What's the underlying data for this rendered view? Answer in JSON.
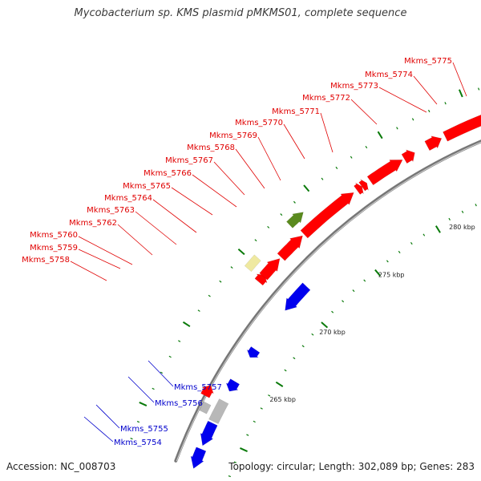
{
  "title": "Mycobacterium sp. KMS plasmid pMKMS01, complete sequence",
  "footer": {
    "accession": "Accession: NC_008703",
    "summary": "Topology: circular; Length: 302,089 bp; Genes: 283"
  },
  "colors": {
    "forward": "#ff0000",
    "reverse": "#0000ee",
    "pseudo": "#efe9a0",
    "rna": "#5a8a1e",
    "other": "#b8b8b8",
    "tick": "#0a7a0a",
    "label_forward": "#e00000",
    "label_reverse": "#0000cc"
  },
  "kbp_labels": [
    "265 kbp",
    "270 kbp",
    "275 kbp",
    "280 kbp",
    "285 kbp"
  ],
  "forward_labels": [
    "Mkms_5758",
    "Mkms_5759",
    "Mkms_5760",
    "Mkms_5762",
    "Mkms_5763",
    "Mkms_5764",
    "Mkms_5765",
    "Mkms_5766",
    "Mkms_5767",
    "Mkms_5768",
    "Mkms_5769",
    "Mkms_5770",
    "Mkms_5771",
    "Mkms_5772",
    "Mkms_5773",
    "Mkms_5774",
    "Mkms_5775"
  ],
  "reverse_labels": [
    "Mkms_5754",
    "Mkms_5755",
    "Mkms_5756",
    "Mkms_5757"
  ]
}
